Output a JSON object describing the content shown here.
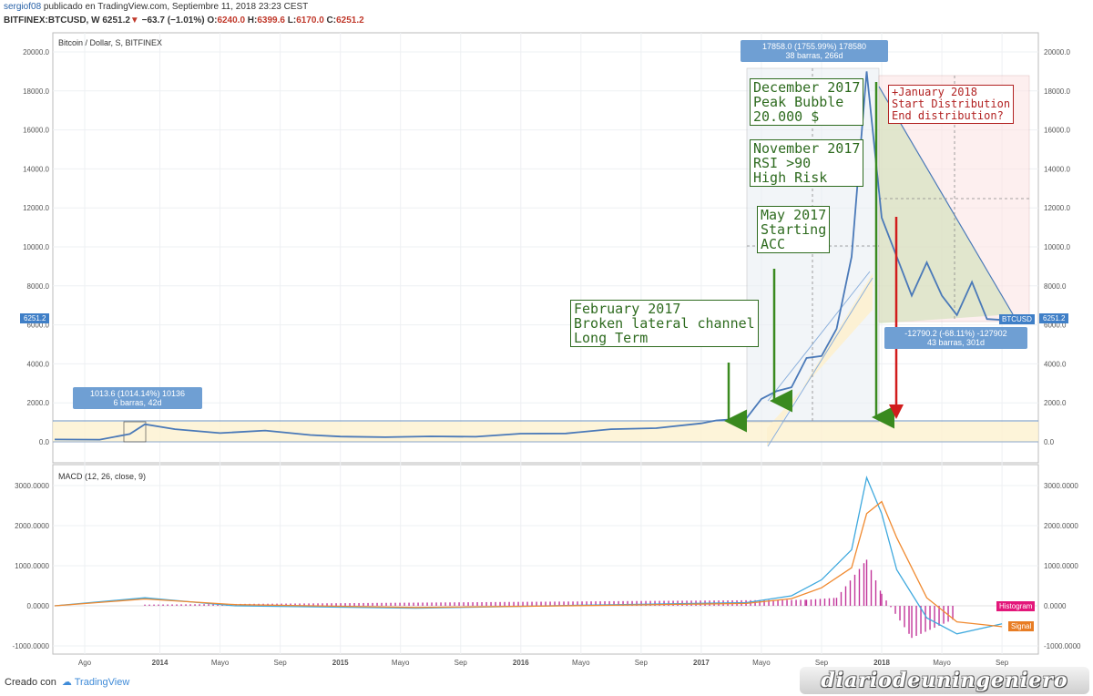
{
  "header": {
    "author": "sergiof08",
    "published": " publicado en TradingView.com, Septiembre 11, 2018 23:23 CEST",
    "symbol": "BITFINEX:BTCUSD, W ",
    "price": "6251.2",
    "change_arrow": "▼",
    "change": " −63.7 (−1.01%)",
    "ohlc_o_label": " O:",
    "ohlc_o": "6240.0",
    "ohlc_h_label": " H:",
    "ohlc_h": "6399.6",
    "ohlc_l_label": " L:",
    "ohlc_l": "6170.0",
    "ohlc_c_label": " C:",
    "ohlc_c": "6251.2"
  },
  "main_pane": {
    "title": "Bitcoin / Dollar, S, BITFINEX",
    "price_tag_left": "6251.2",
    "price_tag_right": "6251.2",
    "series_label": "BTCUSD"
  },
  "macd_pane": {
    "title": "MACD (12, 26, close, 9)",
    "histogram_label": "Histogram",
    "signal_label": "Signal"
  },
  "annotations": {
    "measure_small": {
      "line1": "1013.6 (1014.14%) 10136",
      "line2": "6 barras, 42d"
    },
    "measure_top": {
      "line1": "17858.0 (1755.99%) 178580",
      "line2": "38 barras, 266d"
    },
    "measure_bottom": {
      "line1": "-12790.2 (-68.11%) -127902",
      "line2": "43 barras, 301d"
    },
    "feb2017": [
      "February 2017",
      "Broken lateral channel",
      "Long Term"
    ],
    "dec2017": [
      "December 2017",
      "Peak Bubble",
      "20.000 $"
    ],
    "nov2017": [
      "November 2017",
      "RSI >90",
      "High Risk"
    ],
    "may2017": [
      "May 2017",
      "Starting",
      "ACC"
    ],
    "jan2018": [
      "+January 2018",
      "Start Distribution",
      "End distribution?"
    ]
  },
  "footer": {
    "created_with": "Creado con",
    "brand": "TradingView"
  },
  "watermark": "diariodeuningeniero",
  "colors": {
    "price": "#4a79b8",
    "macd": "#3fa9de",
    "signal": "#f08a30",
    "histogram": "#c2359a",
    "note_green": "#2e6b1f",
    "note_red": "#b22222",
    "arrow_green": "#3a8a1f",
    "arrow_red": "#d11c1c"
  },
  "chart_data": [
    {
      "type": "line",
      "title": "Bitcoin / Dollar, S, BITFINEX",
      "x_ticks": [
        "Ago",
        "2014",
        "Mayo",
        "Sep",
        "2015",
        "Mayo",
        "Sep",
        "2016",
        "Mayo",
        "Sep",
        "2017",
        "Mayo",
        "Sep",
        "2018",
        "Mayo",
        "Sep"
      ],
      "y_ticks": [
        "20000.0",
        "18000.0",
        "16000.0",
        "14000.0",
        "12000.0",
        "10000.0",
        "8000.0",
        "6000.0",
        "4000.0",
        "2000.0",
        "0.0"
      ],
      "ylim": [
        -1000,
        21000
      ],
      "series": [
        {
          "name": "BTCUSD",
          "x": [
            "2013-06",
            "2013-09",
            "2013-11",
            "2013-12",
            "2014-02",
            "2014-05",
            "2014-08",
            "2014-11",
            "2015-01",
            "2015-04",
            "2015-07",
            "2015-10",
            "2016-01",
            "2016-04",
            "2016-07",
            "2016-10",
            "2017-01",
            "2017-02",
            "2017-04",
            "2017-05",
            "2017-06",
            "2017-07",
            "2017-08",
            "2017-09",
            "2017-10",
            "2017-11",
            "2017-12",
            "2018-01",
            "2018-02",
            "2018-03",
            "2018-04",
            "2018-05",
            "2018-06",
            "2018-07",
            "2018-08",
            "2018-09"
          ],
          "values": [
            120,
            110,
            400,
            900,
            650,
            450,
            580,
            350,
            270,
            240,
            280,
            260,
            420,
            430,
            650,
            700,
            950,
            1100,
            1200,
            2200,
            2600,
            2800,
            4300,
            4400,
            5800,
            9500,
            19000,
            11500,
            9500,
            7500,
            9200,
            7500,
            6500,
            8200,
            6300,
            6251
          ]
        }
      ]
    },
    {
      "type": "line",
      "title": "MACD (12, 26, close, 9)",
      "y_ticks": [
        "3000.0000",
        "2000.0000",
        "1000.0000",
        "0.0000",
        "-1000.0000"
      ],
      "ylim": [
        -1000,
        3300
      ],
      "series": [
        {
          "name": "MACD",
          "x": [
            "2013-06",
            "2013-12",
            "2014-06",
            "2015-06",
            "2016-06",
            "2017-04",
            "2017-07",
            "2017-09",
            "2017-11",
            "2017-12",
            "2018-01",
            "2018-02",
            "2018-04",
            "2018-06",
            "2018-09"
          ],
          "values": [
            0,
            200,
            0,
            -60,
            20,
            80,
            250,
            650,
            1400,
            3200,
            2300,
            900,
            -300,
            -700,
            -450
          ]
        },
        {
          "name": "Signal",
          "x": [
            "2013-06",
            "2013-12",
            "2014-06",
            "2015-06",
            "2016-06",
            "2017-04",
            "2017-07",
            "2017-09",
            "2017-11",
            "2017-12",
            "2018-01",
            "2018-02",
            "2018-04",
            "2018-06",
            "2018-09"
          ],
          "values": [
            0,
            170,
            30,
            -40,
            10,
            60,
            180,
            450,
            950,
            2300,
            2600,
            1700,
            200,
            -400,
            -520
          ]
        },
        {
          "name": "Histogram",
          "x": [
            "2013-12",
            "2017-08",
            "2017-10",
            "2017-12",
            "2018-01",
            "2018-03",
            "2018-06"
          ],
          "values": [
            30,
            150,
            200,
            1150,
            300,
            -800,
            -300
          ]
        }
      ]
    }
  ]
}
